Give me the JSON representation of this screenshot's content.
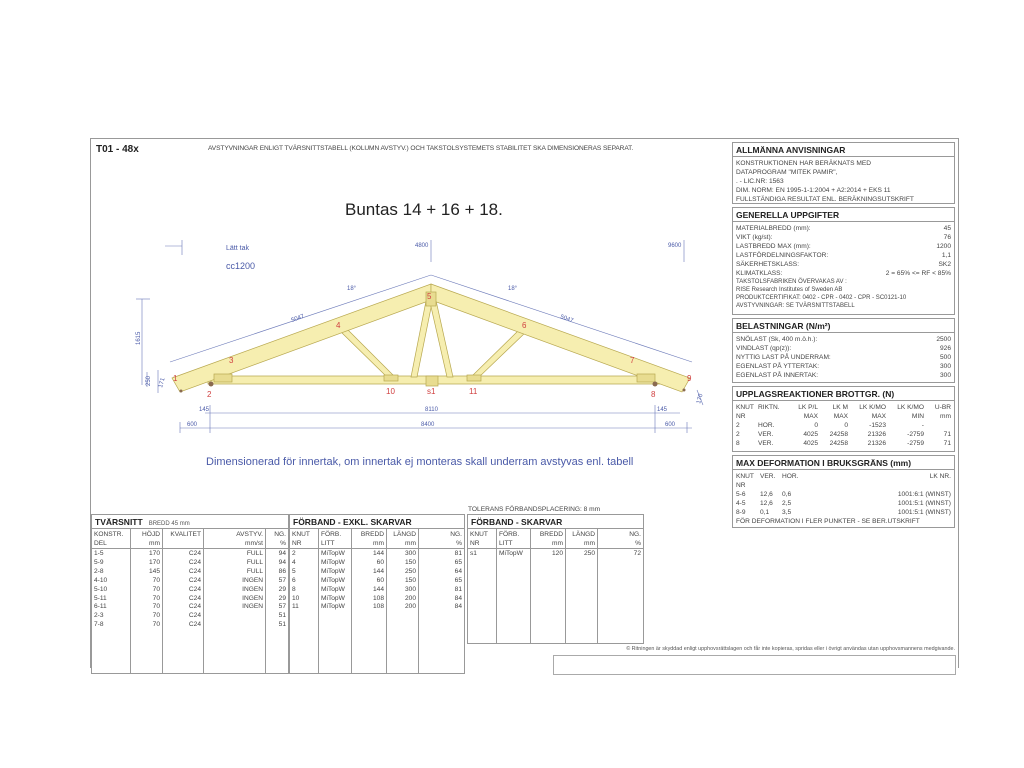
{
  "header": {
    "id": "T01 - 48x",
    "note": "AVSTYVNINGAR ENLIGT TVÄRSNITTSTABELL (KOLUMN AVSTYV.) OCH TAKSTOLSYSTEMETS STABILITET SKA DIMENSIONERAS SEPARAT.",
    "bundle": "Buntas 14 + 16 + 18."
  },
  "drawing": {
    "roof_type": "Lätt tak",
    "spacing": "cc1200",
    "mark_mid": "4800",
    "mark_end": "9600",
    "angle_left": "18°",
    "angle_right": "18°",
    "top_len_left": "5047",
    "top_len_right": "5047",
    "height_total": "1615",
    "height_left_a": "250",
    "height_left_b": "171",
    "height_right": "170",
    "overhang_left": "600",
    "overhang_right": "600",
    "inset_left": "145",
    "inset_right": "145",
    "span_inner": "8110",
    "span_total": "8400",
    "nodes": [
      "1",
      "2",
      "3",
      "4",
      "5",
      "6",
      "7",
      "8",
      "9",
      "10",
      "s1",
      "11"
    ],
    "message": "Dimensionerad för innertak, om innertak ej monteras skall underram avstyvas enl. tabell",
    "wood_color": "#f6eeb0"
  },
  "allmanna": {
    "title": "ALLMÄNNA ANVISNINGAR",
    "lines": [
      "KONSTRUKTIONEN HAR BERÄKNATS MED",
      "DATAPROGRAM \"MITEK PAMIR\",",
      ". - LIC.NR: 1563",
      "DIM. NORM: EN 1995-1-1:2004 + A2:2014 + EKS 11",
      "FULLSTÄNDIGA RESULTAT ENL. BERÄKNINGSUTSKRIFT"
    ]
  },
  "generella": {
    "title": "GENERELLA UPPGIFTER",
    "rows": [
      {
        "k": "MATERIALBREDD (mm):",
        "v": "45"
      },
      {
        "k": "VIKT (kg/st):",
        "v": "76"
      },
      {
        "k": "LASTBREDD MAX (mm):",
        "v": "1200"
      },
      {
        "k": "LASTFÖRDELNINGSFAKTOR:",
        "v": "1,1"
      },
      {
        "k": "SÄKERHETSKLASS:",
        "v": "SK2"
      },
      {
        "k": "KLIMATKLASS:",
        "v": "2 = 65% <= RF < 85%"
      }
    ],
    "notes": [
      "TAKSTOLSFABRIKEN ÖVERVAKAS AV :",
      " RISE Research Institutes of Sweden AB",
      "PRODUKTCERTIFIKAT: 0402 - CPR - 0402 - CPR - SC0121-10",
      "AVSTYVNINGAR: SE TVÄRSNITTSTABELL"
    ]
  },
  "belastningar": {
    "title": "BELASTNINGAR (N/m²)",
    "rows": [
      {
        "k": "SNÖLAST (Sk, 400 m.ö.h.):",
        "v": "2500"
      },
      {
        "k": "VINDLAST (qp(z)):",
        "v": "926"
      },
      {
        "k": "NYTTIG LAST PÅ UNDERRAM:",
        "v": "500"
      },
      {
        "k": "EGENLAST PÅ YTTERTAK:",
        "v": "300"
      },
      {
        "k": "EGENLAST PÅ INNERTAK:",
        "v": "300"
      }
    ]
  },
  "upplag": {
    "title": "UPPLAGSREAKTIONER BROTTGR. (N)",
    "headers": [
      [
        "KNUT",
        "NR"
      ],
      [
        "RIKTN.",
        ""
      ],
      [
        "LK P/L",
        "MAX"
      ],
      [
        "LK M",
        "MAX"
      ],
      [
        "LK K/MO",
        "MAX"
      ],
      [
        "LK K/MO",
        "MIN"
      ],
      [
        "U-BR",
        "mm"
      ]
    ],
    "rows": [
      [
        "2",
        "HOR.",
        "0",
        "0",
        "-1523",
        "-",
        ""
      ],
      [
        "2",
        "VER.",
        "4025",
        "24258",
        "21326",
        "-2759",
        "71"
      ],
      [
        "8",
        "VER.",
        "4025",
        "24258",
        "21326",
        "-2759",
        "71"
      ]
    ]
  },
  "deformation": {
    "title": "MAX DEFORMATION I BRUKSGRÄNS (mm)",
    "headers": [
      [
        "KNUT",
        "NR"
      ],
      [
        "VER.",
        ""
      ],
      [
        "HOR.",
        ""
      ],
      [
        "LK NR.",
        ""
      ]
    ],
    "rows": [
      [
        "5-6",
        "12,6",
        "0,6",
        "1001:6:1 (WINST)"
      ],
      [
        "4-5",
        "12,6",
        "2,5",
        "1001:5:1 (WINST)"
      ],
      [
        "8-9",
        "0,1",
        "3,5",
        "1001:5:1 (WINST)"
      ]
    ],
    "footer": "FÖR DEFORMATION I FLER PUNKTER - SE BER.UTSKRIFT"
  },
  "tvarsnitt": {
    "title": "TVÄRSNITT",
    "subtitle": "BREDD 45 mm",
    "headers": [
      [
        "KONSTR.",
        "DEL"
      ],
      [
        "HÖJD",
        "mm"
      ],
      [
        "KVALITET",
        ""
      ],
      [
        "AVSTYV.",
        "mm/st"
      ],
      [
        "NG.",
        "%"
      ]
    ],
    "rows": [
      [
        "1-5",
        "170",
        "C24",
        "FULL",
        "94"
      ],
      [
        "5-9",
        "170",
        "C24",
        "FULL",
        "94"
      ],
      [
        "2-8",
        "145",
        "C24",
        "FULL",
        "86"
      ],
      [
        "4-10",
        "70",
        "C24",
        "INGEN",
        "57"
      ],
      [
        "5-10",
        "70",
        "C24",
        "INGEN",
        "29"
      ],
      [
        "5-11",
        "70",
        "C24",
        "INGEN",
        "29"
      ],
      [
        "6-11",
        "70",
        "C24",
        "INGEN",
        "57"
      ],
      [
        "2-3",
        "70",
        "C24",
        "",
        "51"
      ],
      [
        "7-8",
        "70",
        "C24",
        "",
        "51"
      ]
    ]
  },
  "forband_exkl": {
    "title": "FÖRBAND - EXKL. SKARVAR",
    "headers": [
      [
        "KNUT",
        "NR"
      ],
      [
        "FÖRB.",
        "LITT"
      ],
      [
        "BREDD",
        "mm"
      ],
      [
        "LÄNGD",
        "mm"
      ],
      [
        "NG.",
        "%"
      ]
    ],
    "rows": [
      [
        "2",
        "MiTopW",
        "144",
        "300",
        "81"
      ],
      [
        "4",
        "MiTopW",
        "60",
        "150",
        "65"
      ],
      [
        "5",
        "MiTopW",
        "144",
        "250",
        "64"
      ],
      [
        "6",
        "MiTopW",
        "60",
        "150",
        "65"
      ],
      [
        "8",
        "MiTopW",
        "144",
        "300",
        "81"
      ],
      [
        "10",
        "MiTopW",
        "108",
        "200",
        "84"
      ],
      [
        "11",
        "MiTopW",
        "108",
        "200",
        "84"
      ]
    ]
  },
  "tolerans": "TOLERANS FÖRBANDSPLACERING: 8 mm",
  "forband_skarvar": {
    "title": "FÖRBAND - SKARVAR",
    "headers": [
      [
        "KNUT",
        "NR"
      ],
      [
        "FÖRB.",
        "LITT"
      ],
      [
        "BREDD",
        "mm"
      ],
      [
        "LÄNGD",
        "mm"
      ],
      [
        "NG.",
        "%"
      ]
    ],
    "rows": [
      [
        "s1",
        "MiTopW",
        "120",
        "250",
        "72"
      ]
    ]
  },
  "copyright": "© Ritningen är skyddad enligt upphovsrättslagen och får inte kopieras, spridas eller i övrigt användas utan upphovsmannens medgivande."
}
